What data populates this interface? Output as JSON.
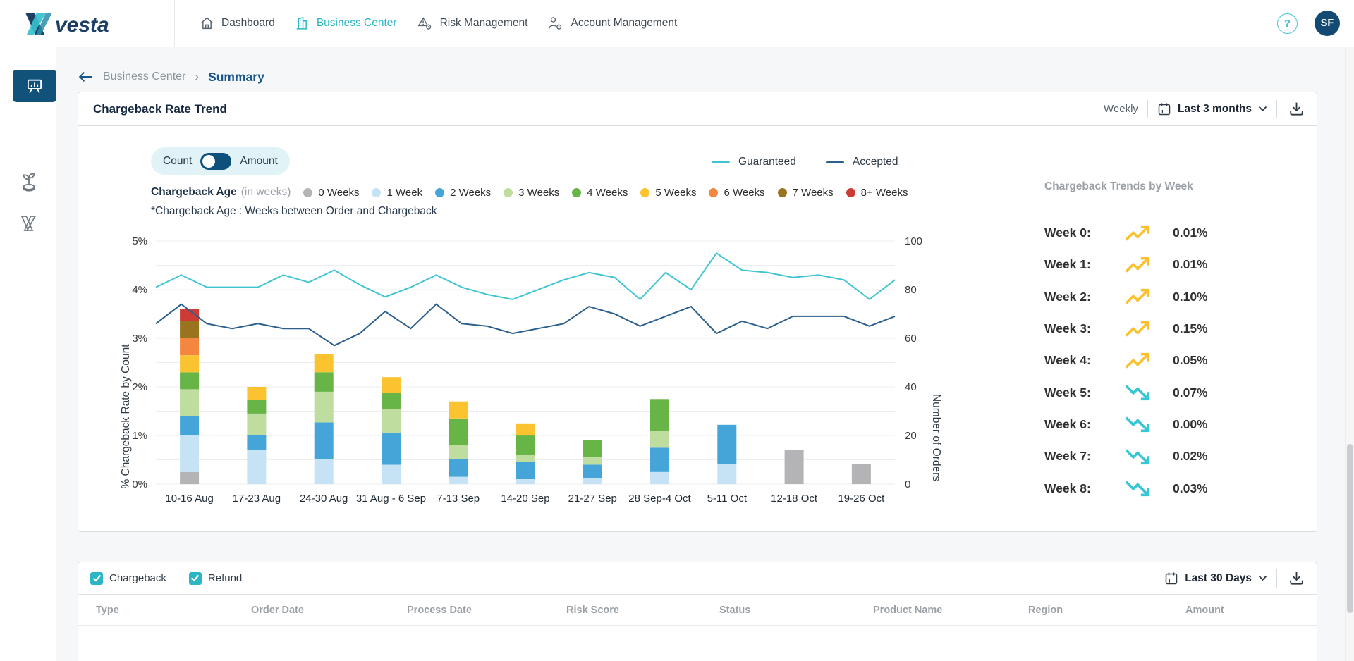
{
  "brand": {
    "name": "vesta"
  },
  "nav": {
    "items": [
      {
        "label": "Dashboard",
        "icon": "home-icon",
        "active": false
      },
      {
        "label": "Business Center",
        "icon": "building-icon",
        "active": true
      },
      {
        "label": "Risk Management",
        "icon": "alert-gear-icon",
        "active": false
      },
      {
        "label": "Account Management",
        "icon": "user-gear-icon",
        "active": false
      }
    ],
    "help_label": "?",
    "avatar_initials": "SF"
  },
  "sidebar": {
    "items": [
      {
        "icon": "presentation-chart-icon",
        "active": true
      },
      {
        "icon": "sprout-coin-icon",
        "active": false
      },
      {
        "icon": "vesta-mark-icon",
        "active": false
      }
    ]
  },
  "breadcrumb": {
    "parent": "Business Center",
    "separator": "›",
    "current": "Summary"
  },
  "chart_card": {
    "title": "Chargeback Rate Trend",
    "frequency_label": "Weekly",
    "range_label": "Last 3 months",
    "toggle": {
      "left": "Count",
      "right": "Amount",
      "switch_color": "#0d507c",
      "pill_bg": "#e2f3f7"
    },
    "age_legend": {
      "title": "Chargeback Age",
      "subtitle": "(in weeks)"
    },
    "footnote": "*Chargeback Age : Weeks between Order and Chargeback"
  },
  "chart_data": {
    "type": "bar+line",
    "title": "Chargeback Rate Trend",
    "categories": [
      "10-16 Aug",
      "17-23 Aug",
      "24-30 Aug",
      "31 Aug - 6 Sep",
      "7-13 Sep",
      "14-20 Sep",
      "21-27 Sep",
      "28 Sep-4 Oct",
      "5-11 Oct",
      "12-18 Oct",
      "19-26 Oct"
    ],
    "series": [
      {
        "name": "0 Weeks",
        "color": "#b4b4b7",
        "values": [
          0.25,
          0,
          0,
          0,
          0,
          0,
          0,
          0,
          0,
          0.7,
          0.42
        ]
      },
      {
        "name": "1 Week",
        "color": "#c5e3f5",
        "values": [
          0.75,
          0.7,
          0.52,
          0.4,
          0.15,
          0.1,
          0.12,
          0.25,
          0.42,
          0,
          0
        ]
      },
      {
        "name": "2 Weeks",
        "color": "#45a5d8",
        "values": [
          0.4,
          0.3,
          0.75,
          0.65,
          0.37,
          0.35,
          0.28,
          0.5,
          0.8,
          0,
          0
        ]
      },
      {
        "name": "3 Weeks",
        "color": "#bedd9f",
        "values": [
          0.55,
          0.45,
          0.63,
          0.5,
          0.28,
          0.15,
          0.15,
          0.35,
          0,
          0,
          0
        ]
      },
      {
        "name": "4 Weeks",
        "color": "#67b447",
        "values": [
          0.35,
          0.28,
          0.4,
          0.33,
          0.55,
          0.4,
          0.35,
          0.65,
          0,
          0,
          0
        ]
      },
      {
        "name": "5 Weeks",
        "color": "#fbc330",
        "values": [
          0.35,
          0.27,
          0.38,
          0.32,
          0.35,
          0.25,
          0,
          0,
          0,
          0,
          0
        ]
      },
      {
        "name": "6 Weeks",
        "color": "#f58640",
        "values": [
          0.35,
          0,
          0,
          0,
          0,
          0,
          0,
          0,
          0,
          0,
          0
        ]
      },
      {
        "name": "7 Weeks",
        "color": "#9a731f",
        "values": [
          0.35,
          0,
          0,
          0,
          0,
          0,
          0,
          0,
          0,
          0,
          0
        ]
      },
      {
        "name": "8+ Weeks",
        "color": "#cd3b34",
        "values": [
          0.25,
          0,
          0,
          0,
          0,
          0,
          0,
          0,
          0,
          0,
          0
        ]
      }
    ],
    "lines": [
      {
        "name": "Guaranteed",
        "color": "#3fc5d2",
        "axis": "right",
        "values": [
          81,
          86,
          81,
          81,
          81,
          86,
          83,
          88,
          82,
          77,
          81,
          86,
          81,
          78,
          76,
          80,
          84,
          87,
          85,
          76,
          87,
          80,
          95,
          88,
          87,
          85,
          86,
          84,
          76,
          84
        ]
      },
      {
        "name": "Accepted",
        "color": "#2d5f8b",
        "axis": "right",
        "values": [
          66,
          74,
          66,
          64,
          66,
          64,
          64,
          57,
          62,
          71,
          64,
          74,
          66,
          65,
          62,
          64,
          66,
          73,
          70,
          65,
          69,
          73,
          62,
          67,
          64,
          69,
          69,
          69,
          65,
          69
        ]
      }
    ],
    "left_axis": {
      "label": "% Chargeback Rate by Count",
      "min": 0,
      "max": 5,
      "ticks": [
        "0%",
        "1%",
        "2%",
        "3%",
        "4%",
        "5%"
      ],
      "grid_step": 0.5
    },
    "right_axis": {
      "label": "Number of Orders",
      "min": 0,
      "max": 100,
      "ticks": [
        0,
        20,
        40,
        60,
        80,
        100
      ]
    },
    "grid": true,
    "legend_position": "top"
  },
  "trends_panel": {
    "title": "Chargeback Trends by Week",
    "up_color": "#fbc12d",
    "down_color": "#36c6d5",
    "rows": [
      {
        "label": "Week 0:",
        "trend": "up",
        "value": "0.01%"
      },
      {
        "label": "Week 1:",
        "trend": "up",
        "value": "0.01%"
      },
      {
        "label": "Week 2:",
        "trend": "up",
        "value": "0.10%"
      },
      {
        "label": "Week 3:",
        "trend": "up",
        "value": "0.15%"
      },
      {
        "label": "Week 4:",
        "trend": "up",
        "value": "0.05%"
      },
      {
        "label": "Week 5:",
        "trend": "down",
        "value": "0.07%"
      },
      {
        "label": "Week 6:",
        "trend": "down",
        "value": "0.00%"
      },
      {
        "label": "Week 7:",
        "trend": "down",
        "value": "0.02%"
      },
      {
        "label": "Week 8:",
        "trend": "down",
        "value": "0.03%"
      }
    ]
  },
  "table_card": {
    "filters": [
      {
        "label": "Chargeback",
        "checked": true
      },
      {
        "label": "Refund",
        "checked": true
      }
    ],
    "range_label": "Last 30 Days",
    "columns": [
      "Type",
      "Order Date",
      "Process Date",
      "Risk Score",
      "Status",
      "Product Name",
      "Region",
      "Amount"
    ],
    "rows": []
  },
  "colors": {
    "accent_teal": "#2cb5c4",
    "navy": "#11527b",
    "checkbox_teal": "#2cb5c4"
  }
}
